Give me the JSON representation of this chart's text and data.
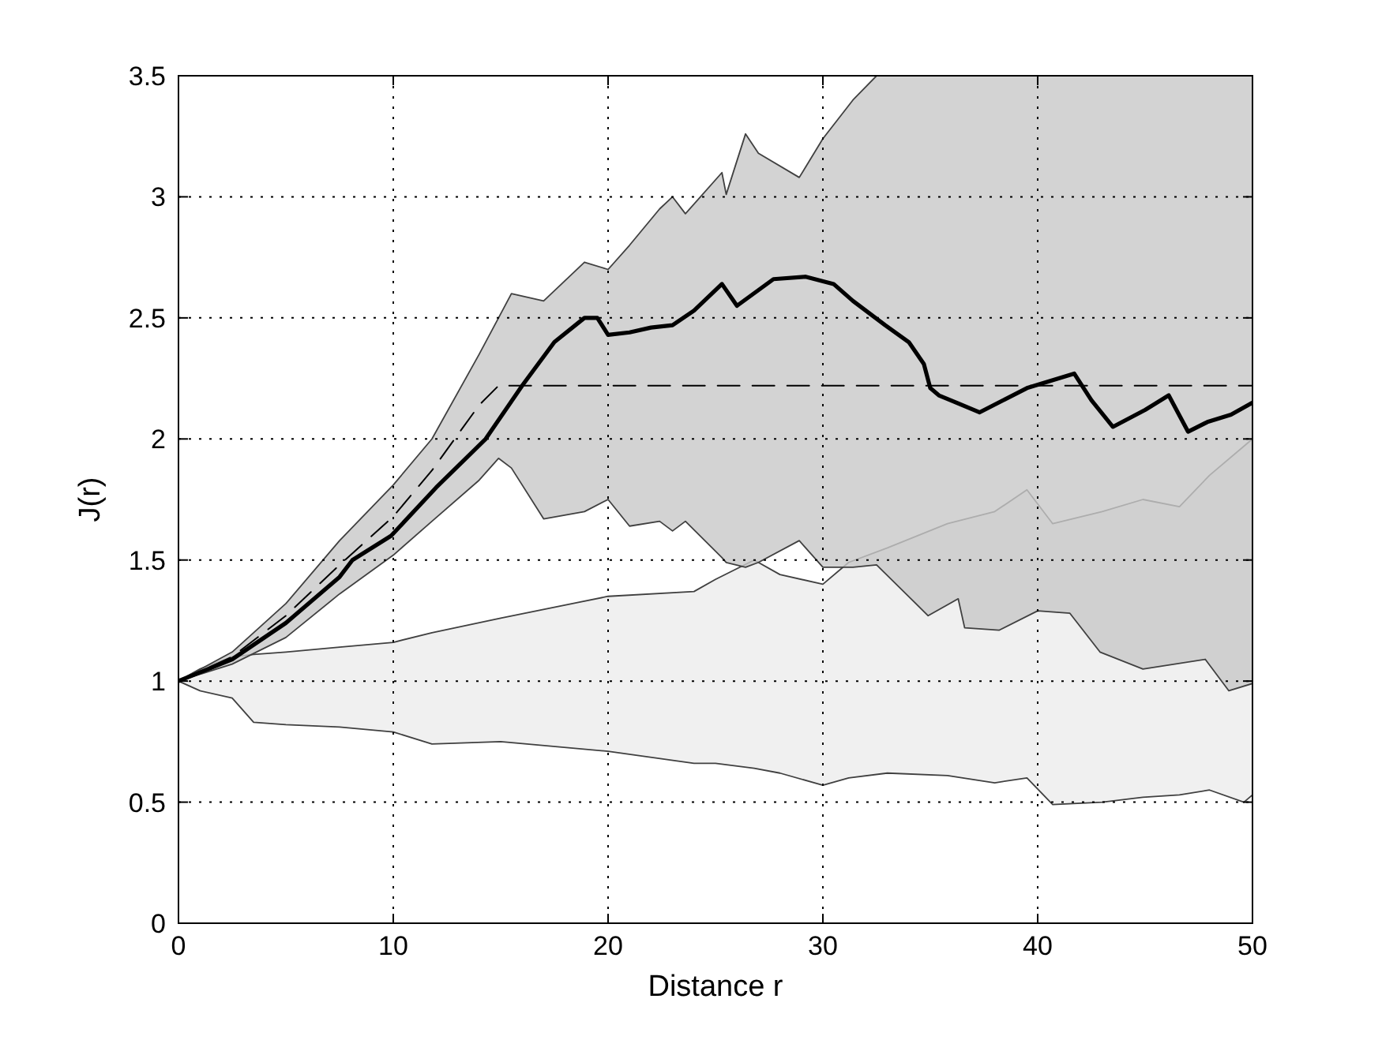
{
  "chart_data": {
    "type": "line",
    "xlabel": "Distance r",
    "ylabel": "J(r)",
    "xlim": [
      0,
      50
    ],
    "ylim": [
      0,
      3.5
    ],
    "xticks": [
      0,
      10,
      20,
      30,
      40,
      50
    ],
    "yticks": [
      0,
      0.5,
      1,
      1.5,
      2,
      2.5,
      3,
      3.5
    ],
    "grid": true,
    "marker": "none",
    "series": [
      {
        "color": "#f0f0f0",
        "x": [
          0,
          1,
          2.5,
          3.5,
          5,
          7.5,
          10,
          11.8,
          15,
          20,
          24,
          25,
          26.8,
          28,
          30,
          31.2,
          33,
          35.8,
          38,
          39.5,
          40.7,
          43,
          44.9,
          46.6,
          48,
          49.6,
          50
        ],
        "values": [
          null,
          null,
          null,
          null,
          null,
          null,
          null,
          null,
          null,
          null,
          null,
          null,
          null,
          null,
          null,
          null,
          null,
          null,
          null,
          null,
          null,
          null,
          null,
          null,
          null,
          null,
          null
        ],
        "upper": [
          1,
          1.05,
          1.1,
          1.11,
          1.12,
          1.14,
          1.16,
          1.2,
          1.26,
          1.35,
          1.37,
          1.42,
          1.5,
          1.44,
          1.4,
          1.49,
          1.55,
          1.65,
          1.7,
          1.79,
          1.65,
          1.7,
          1.75,
          1.72,
          1.85,
          1.97,
          2.0
        ],
        "lower": [
          1,
          0.96,
          0.93,
          0.83,
          0.82,
          0.81,
          0.79,
          0.74,
          0.75,
          0.71,
          0.66,
          0.66,
          0.64,
          0.62,
          0.57,
          0.6,
          0.62,
          0.61,
          0.58,
          0.6,
          0.49,
          0.5,
          0.52,
          0.53,
          0.55,
          0.5,
          0.53
        ]
      },
      {
        "color": "#000000",
        "line_style": "dashed",
        "x": [
          0,
          2.5,
          5,
          7.5,
          10,
          11.8,
          14,
          14.9,
          15.5,
          17,
          18.9,
          20,
          21,
          22.4,
          23,
          23.6,
          25.3,
          25.5,
          26.4,
          27,
          28.9,
          30,
          31.4,
          32.5,
          34.9,
          36.3,
          36.6,
          38.2,
          40,
          41.5,
          42.9,
          44.9,
          47.8,
          48.9,
          50
        ],
        "values": [
          1,
          1.1,
          1.27,
          1.48,
          1.68,
          1.87,
          2.14,
          2.22,
          2.22,
          2.22,
          2.22,
          2.22,
          2.22,
          2.22,
          2.22,
          2.22,
          2.22,
          2.22,
          2.22,
          2.22,
          2.22,
          2.22,
          2.22,
          2.22,
          2.22,
          2.22,
          2.22,
          2.22,
          2.22,
          2.22,
          2.22,
          2.22,
          2.22,
          2.22,
          2.22
        ],
        "upper": [
          1,
          1.12,
          1.32,
          1.58,
          1.81,
          2.0,
          2.35,
          2.5,
          2.6,
          2.57,
          2.73,
          2.7,
          2.8,
          2.95,
          3.0,
          2.93,
          3.1,
          3.01,
          3.26,
          3.18,
          3.08,
          3.24,
          3.4,
          3.5,
          3.5,
          3.5,
          3.5,
          3.5,
          3.5,
          3.5,
          3.5,
          3.5,
          3.5,
          3.5,
          3.5
        ],
        "lower": [
          1,
          1.07,
          1.18,
          1.36,
          1.52,
          1.66,
          1.83,
          1.92,
          1.88,
          1.67,
          1.7,
          1.75,
          1.64,
          1.66,
          1.62,
          1.66,
          1.51,
          1.49,
          1.47,
          1.49,
          1.58,
          1.47,
          1.47,
          1.48,
          1.27,
          1.34,
          1.22,
          1.21,
          1.29,
          1.28,
          1.12,
          1.05,
          1.09,
          0.96,
          0.99
        ]
      },
      {
        "color": "#000000",
        "line_style": "solid",
        "x": [
          0,
          2.5,
          5,
          7.5,
          8.1,
          9.9,
          12,
          14.3,
          16,
          17.5,
          18.9,
          19.5,
          20,
          21,
          22,
          23,
          24,
          25.3,
          26,
          27.7,
          29.2,
          30.5,
          31.4,
          32.9,
          34,
          34.7,
          35,
          35.4,
          37.3,
          39.5,
          41.7,
          42.5,
          43.5,
          45,
          46.1,
          47,
          47.9,
          49,
          50
        ],
        "values": [
          1,
          1.09,
          1.24,
          1.43,
          1.5,
          1.6,
          1.8,
          2.0,
          2.22,
          2.4,
          2.5,
          2.5,
          2.43,
          2.44,
          2.46,
          2.47,
          2.53,
          2.64,
          2.55,
          2.66,
          2.67,
          2.64,
          2.57,
          2.47,
          2.4,
          2.31,
          2.21,
          2.18,
          2.11,
          2.21,
          2.27,
          2.16,
          2.05,
          2.12,
          2.18,
          2.03,
          2.07,
          2.1,
          2.15
        ]
      }
    ]
  }
}
